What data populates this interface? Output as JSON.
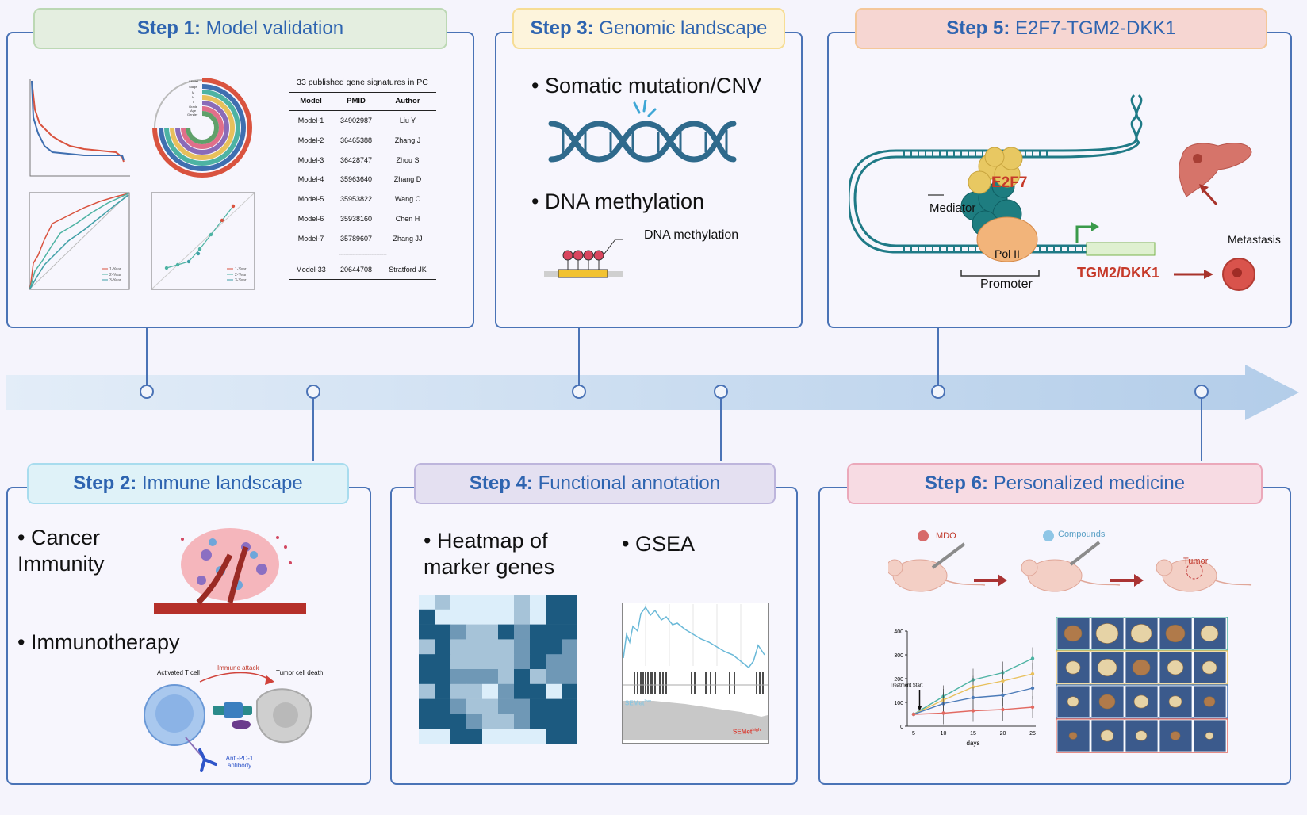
{
  "steps": [
    {
      "prefix": "Step 1:",
      "title": "Model validation"
    },
    {
      "prefix": "Step 2:",
      "title": "Immune landscape"
    },
    {
      "prefix": "Step 3:",
      "title": "Genomic landscape"
    },
    {
      "prefix": "Step 4:",
      "title": "Functional annotation"
    },
    {
      "prefix": "Step 5:",
      "title": "E2F7-TGM2-DKK1"
    },
    {
      "prefix": "Step 6:",
      "title": "Personalized medicine"
    }
  ],
  "step1": {
    "table_title": "33 published gene signatures in PC",
    "headers": [
      "Model",
      "PMID",
      "Author"
    ],
    "rows": [
      [
        "Model-1",
        "34902987",
        "Liu Y"
      ],
      [
        "Model-2",
        "36465388",
        "Zhang J"
      ],
      [
        "Model-3",
        "36428747",
        "Zhou S"
      ],
      [
        "Model-4",
        "35963640",
        "Zhang D"
      ],
      [
        "Model-5",
        "35953822",
        "Wang C"
      ],
      [
        "Model-6",
        "35938160",
        "Chen H"
      ],
      [
        "Model-7",
        "35789607",
        "Zhang JJ"
      ]
    ],
    "ellipsis_row": "----------------------------",
    "last_row": [
      "Model-33",
      "20644708",
      "Stratford JK"
    ],
    "roc_legend": [
      "1-Year",
      "2-Year",
      "3-Year"
    ],
    "calib_legend": [
      "1-Year",
      "2-Year",
      "3-Year"
    ],
    "circ_labels": [
      "SEMet",
      "Stage",
      "M",
      "N",
      "T",
      "Grade",
      "Age",
      "Gender"
    ]
  },
  "step2": {
    "bullet1": "• Cancer Immunity",
    "bullet2": "• Immunotherapy",
    "activated": "Activated T cell",
    "attack": "Immune attack",
    "death": "Tumor cell death",
    "antibody": "Anti-PD-1 antibody"
  },
  "step3": {
    "bullet1": "• Somatic mutation/CNV",
    "bullet2": "• DNA methylation",
    "meth_label": "DNA methylation"
  },
  "step4": {
    "bullet1": "• Heatmap of marker genes",
    "bullet2": "• GSEA",
    "gsea_low": "SEMet",
    "gsea_low_sup": "low",
    "gsea_high": "SEMet",
    "gsea_high_sup": "high",
    "heatmap": [
      [
        1,
        2,
        1,
        1,
        1,
        1,
        2,
        1,
        0,
        0
      ],
      [
        0,
        1,
        1,
        1,
        1,
        1,
        2,
        1,
        0,
        0
      ],
      [
        0,
        0,
        3,
        2,
        2,
        0,
        3,
        0,
        0,
        0
      ],
      [
        2,
        0,
        2,
        2,
        2,
        2,
        3,
        0,
        0,
        3
      ],
      [
        0,
        0,
        2,
        2,
        2,
        2,
        3,
        0,
        3,
        3
      ],
      [
        0,
        0,
        3,
        3,
        3,
        2,
        0,
        2,
        3,
        3
      ],
      [
        2,
        0,
        2,
        2,
        1,
        3,
        0,
        0,
        1,
        0
      ],
      [
        0,
        0,
        3,
        2,
        2,
        3,
        3,
        0,
        0,
        0
      ],
      [
        0,
        0,
        0,
        3,
        2,
        2,
        3,
        0,
        0,
        0
      ],
      [
        1,
        1,
        0,
        0,
        1,
        1,
        1,
        1,
        0,
        0
      ]
    ],
    "heat_colors": [
      "#1c5a80",
      "#dceefa",
      "#a6c3d8",
      "#6f98b6"
    ]
  },
  "step5": {
    "e2f7": "E2F7",
    "mediator": "Mediator",
    "pol": "Pol II",
    "promoter": "Promoter",
    "target": "TGM2/DKK1",
    "metastasis": "Metastasis"
  },
  "step6": {
    "mdo": "MDO",
    "compounds": "Compounds",
    "tumor": "Tumor",
    "treatment": "Treatment Start",
    "xlabel": "days",
    "xticks": [
      "5",
      "10",
      "15",
      "20",
      "25"
    ],
    "yticks": [
      "0",
      "100",
      "200",
      "300",
      "400"
    ]
  },
  "chart_data": {
    "type": "line",
    "x": [
      5,
      10,
      15,
      20,
      25
    ],
    "xlabel": "days",
    "ylim": [
      0,
      400
    ],
    "series": [
      {
        "color": "#4db3a3",
        "values": [
          50,
          125,
          195,
          225,
          285
        ]
      },
      {
        "color": "#e8c05c",
        "values": [
          50,
          110,
          165,
          190,
          220
        ]
      },
      {
        "color": "#4c7bb8",
        "values": [
          50,
          95,
          120,
          130,
          160
        ]
      },
      {
        "color": "#e26a62",
        "values": [
          50,
          55,
          65,
          70,
          80
        ]
      }
    ]
  }
}
